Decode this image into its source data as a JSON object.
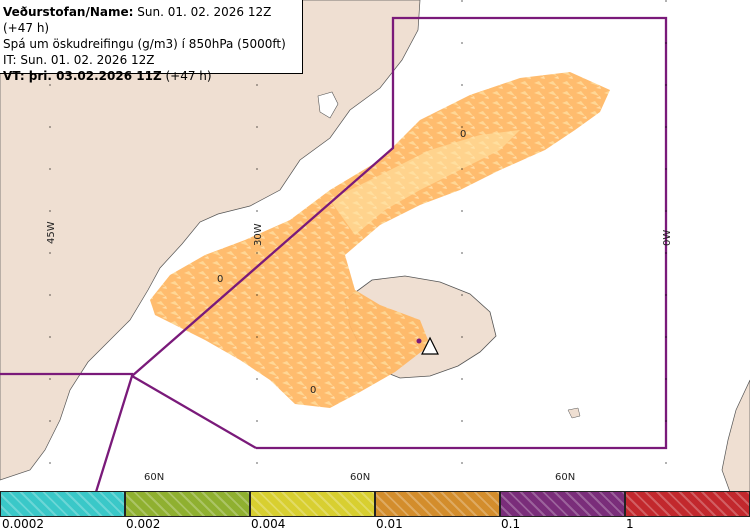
{
  "header": {
    "line1_label": "Veðurstofan/Name:",
    "line1_value": "Sun. 01. 02. 2026 12Z (+47 h)",
    "line2": "Spá um öskudreifingu (g/m3) í 850hPa (5000ft)",
    "line3": "IT: Sun. 01. 02. 2026 12Z",
    "line4_label": "VT: þri. 03.02.2026 11Z",
    "line4_value": "(+47 h)"
  },
  "map": {
    "lon_labels": [
      "45W",
      "30W",
      "0W"
    ],
    "lat_labels": [
      "60N",
      "60N",
      "60N"
    ],
    "zero_labels": [
      "0",
      "0",
      "0"
    ],
    "colors": {
      "ocean": "#ffffff",
      "land": "#efdfd2",
      "ash": "#ffb866",
      "ash_light": "#ffe6a8",
      "boundary": "#7a1a7a"
    },
    "symbols": [
      "volcano-icon"
    ]
  },
  "legend": {
    "colors": [
      "#3ac8c8",
      "#8fb030",
      "#d8cf30",
      "#d38d2c",
      "#7a2d7a",
      "#c2282d"
    ],
    "labels": [
      "0.0002",
      "0.002",
      "0.004",
      "0.01",
      "0.1",
      "1"
    ]
  }
}
